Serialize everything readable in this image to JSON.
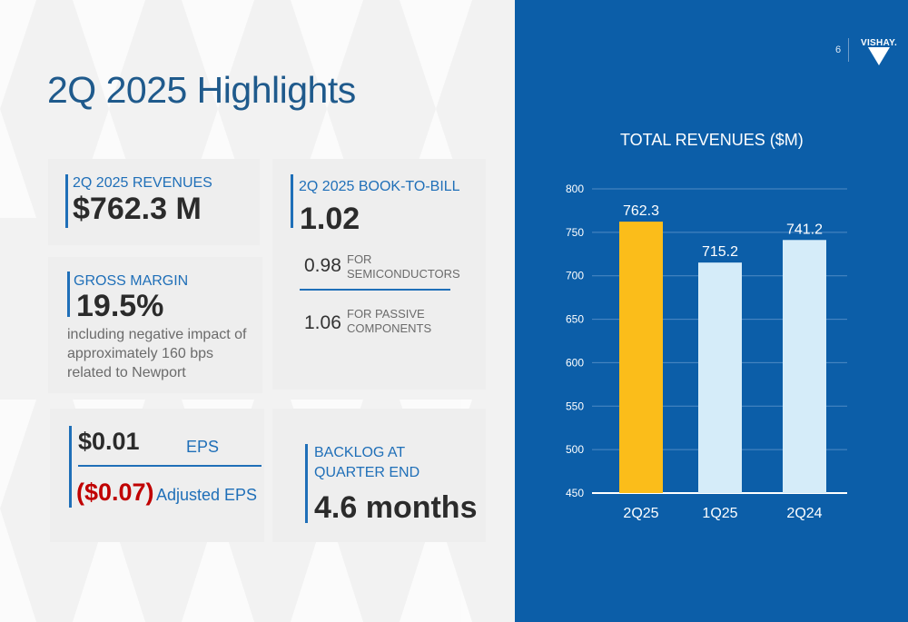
{
  "page": {
    "title": "2Q 2025 Highlights",
    "page_number": "6",
    "logo_text": "VISHAY.",
    "logo_icon": "vishay-triangle-logo-icon"
  },
  "revenues": {
    "label": "2Q 2025 REVENUES",
    "value": "$762.3 M"
  },
  "gross_margin": {
    "label": "GROSS MARGIN",
    "value": "19.5%",
    "note_line1": "including negative impact of",
    "note_line2": "approximately 160 bps",
    "note_line3": "related to Newport"
  },
  "book_to_bill": {
    "label": "2Q 2025 BOOK-TO-BILL",
    "value": "1.02",
    "semis_value": "0.98",
    "semis_label_line1": "FOR",
    "semis_label_line2": "SEMICONDUCTORS",
    "passive_value": "1.06",
    "passive_label_line1": "FOR PASSIVE",
    "passive_label_line2": "COMPONENTS"
  },
  "eps": {
    "eps_value": "$0.01",
    "eps_label": "EPS",
    "adj_value": "($0.07)",
    "adj_label": "Adjusted EPS"
  },
  "backlog": {
    "label_line1": "BACKLOG AT",
    "label_line2": "QUARTER END",
    "value": "4.6 months"
  },
  "colors": {
    "accent_blue": "#1f6fb8",
    "title_blue": "#1f5a8c",
    "panel_blue": "#0c5ea8",
    "highlight_bar": "#fbbd1a",
    "other_bar": "#d5ecf9",
    "negative_red": "#c00000"
  },
  "chart_data": {
    "type": "bar",
    "title": "TOTAL REVENUES ($M)",
    "categories": [
      "2Q25",
      "1Q25",
      "2Q24"
    ],
    "values": [
      762.3,
      715.2,
      741.2
    ],
    "value_labels": [
      "762.3",
      "715.2",
      "741.2"
    ],
    "highlight_index": 0,
    "ylim": [
      450,
      800
    ],
    "yticks": [
      450,
      500,
      550,
      600,
      650,
      700,
      750,
      800
    ],
    "grid": true,
    "xlabel": "",
    "ylabel": ""
  }
}
